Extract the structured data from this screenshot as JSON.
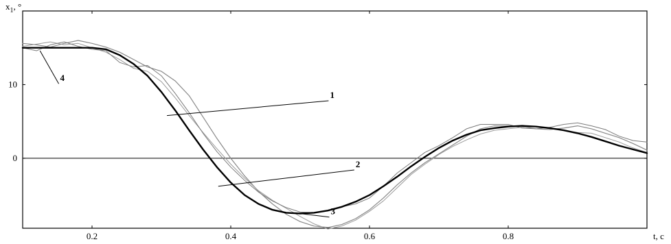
{
  "chart_data": {
    "type": "line",
    "title": "",
    "xlabel": "t, c",
    "ylabel": "x",
    "ylabel_sub": "1",
    "ylabel_suffix": ", °",
    "xlim": [
      0.1,
      1.0
    ],
    "ylim": [
      -9.5,
      20
    ],
    "x_ticks": [
      {
        "value": 0.2,
        "label": "0.2"
      },
      {
        "value": 0.4,
        "label": "0.4"
      },
      {
        "value": 0.6,
        "label": "0.6"
      },
      {
        "value": 0.8,
        "label": "0.8"
      }
    ],
    "y_ticks": [
      {
        "value": 0,
        "label": "0"
      },
      {
        "value": 10,
        "label": "10"
      }
    ],
    "zero_line": true,
    "grid": false,
    "series": [
      {
        "name": "1",
        "color": "#888888",
        "width": 1.2,
        "x": [
          0.1,
          0.12,
          0.14,
          0.16,
          0.18,
          0.2,
          0.22,
          0.24,
          0.26,
          0.28,
          0.3,
          0.32,
          0.34,
          0.36,
          0.38,
          0.4,
          0.42,
          0.44,
          0.46,
          0.48,
          0.5,
          0.52,
          0.54,
          0.56,
          0.58,
          0.6,
          0.62,
          0.64,
          0.66,
          0.68,
          0.7,
          0.72,
          0.74,
          0.76,
          0.78,
          0.8,
          0.82,
          0.84,
          0.86,
          0.88,
          0.9,
          0.92,
          0.94,
          0.96,
          0.98,
          1.0
        ],
        "y": [
          15.6,
          15.4,
          15.1,
          15.6,
          16.0,
          15.6,
          15.1,
          14.4,
          13.4,
          12.4,
          11.8,
          10.5,
          8.5,
          5.6,
          2.7,
          0.0,
          -2.4,
          -4.5,
          -6.2,
          -7.6,
          -8.6,
          -9.2,
          -9.4,
          -9.0,
          -8.2,
          -7.0,
          -5.4,
          -3.6,
          -2.0,
          -0.6,
          0.6,
          1.8,
          3.0,
          4.0,
          4.4,
          4.4,
          4.3,
          4.0,
          3.9,
          4.1,
          4.4,
          4.0,
          3.4,
          2.8,
          2.0,
          1.1
        ]
      },
      {
        "name": "2",
        "color": "#9a9a9a",
        "width": 1.0,
        "x": [
          0.1,
          0.12,
          0.14,
          0.16,
          0.18,
          0.2,
          0.22,
          0.24,
          0.26,
          0.28,
          0.3,
          0.32,
          0.34,
          0.36,
          0.38,
          0.4,
          0.42,
          0.44,
          0.46,
          0.48,
          0.5,
          0.52,
          0.54,
          0.56,
          0.58,
          0.6,
          0.62,
          0.64,
          0.66,
          0.68,
          0.7,
          0.72,
          0.74,
          0.76,
          0.78,
          0.8,
          0.82,
          0.84,
          0.86,
          0.88,
          0.9,
          0.92,
          0.94,
          0.96,
          0.98,
          1.0
        ],
        "y": [
          15.2,
          15.5,
          15.8,
          15.4,
          15.6,
          15.0,
          14.4,
          13.4,
          12.2,
          11.8,
          10.4,
          8.2,
          5.8,
          3.5,
          1.3,
          -0.8,
          -2.7,
          -4.4,
          -5.7,
          -6.8,
          -7.9,
          -8.9,
          -9.6,
          -9.2,
          -8.4,
          -7.2,
          -5.8,
          -4.0,
          -2.2,
          -0.8,
          0.5,
          1.6,
          2.5,
          3.3,
          3.8,
          4.0,
          4.2,
          4.3,
          4.0,
          3.8,
          3.5,
          3.4,
          2.8,
          2.2,
          1.4,
          0.8
        ]
      },
      {
        "name": "4",
        "color": "#7a7a7a",
        "width": 1.0,
        "x": [
          0.1,
          0.12,
          0.14,
          0.16,
          0.18,
          0.2,
          0.22,
          0.24,
          0.26,
          0.28,
          0.3,
          0.32,
          0.34,
          0.36,
          0.38,
          0.4,
          0.42,
          0.44,
          0.46,
          0.48,
          0.5,
          0.52,
          0.54,
          0.56,
          0.58,
          0.6,
          0.62,
          0.64,
          0.66,
          0.68,
          0.7,
          0.72,
          0.74,
          0.76,
          0.78,
          0.8,
          0.82,
          0.84,
          0.86,
          0.88,
          0.9,
          0.92,
          0.94,
          0.96,
          0.98,
          1.0
        ],
        "y": [
          15.0,
          14.6,
          15.4,
          15.8,
          15.2,
          14.8,
          14.6,
          13.0,
          12.4,
          12.6,
          11.2,
          8.8,
          6.2,
          3.4,
          0.9,
          -1.2,
          -3.0,
          -4.6,
          -5.8,
          -6.7,
          -7.3,
          -7.4,
          -7.1,
          -6.6,
          -6.2,
          -5.4,
          -3.8,
          -2.0,
          -0.6,
          0.8,
          1.7,
          2.8,
          4.0,
          4.6,
          4.6,
          4.6,
          4.1,
          4.0,
          4.2,
          4.6,
          4.8,
          4.4,
          3.9,
          3.0,
          2.4,
          2.2
        ]
      },
      {
        "name": "3",
        "color": "#000000",
        "width": 2.4,
        "x": [
          0.1,
          0.12,
          0.14,
          0.16,
          0.18,
          0.2,
          0.22,
          0.24,
          0.26,
          0.28,
          0.3,
          0.32,
          0.34,
          0.36,
          0.38,
          0.4,
          0.42,
          0.44,
          0.46,
          0.48,
          0.5,
          0.52,
          0.54,
          0.56,
          0.58,
          0.6,
          0.62,
          0.64,
          0.66,
          0.68,
          0.7,
          0.72,
          0.74,
          0.76,
          0.78,
          0.8,
          0.82,
          0.84,
          0.86,
          0.88,
          0.9,
          0.92,
          0.94,
          0.96,
          0.98,
          1.0
        ],
        "y": [
          15.0,
          15.0,
          15.0,
          15.0,
          15.0,
          15.0,
          14.8,
          14.0,
          12.8,
          11.2,
          9.0,
          6.5,
          3.8,
          1.2,
          -1.2,
          -3.3,
          -5.0,
          -6.2,
          -7.0,
          -7.4,
          -7.5,
          -7.4,
          -7.1,
          -6.6,
          -5.9,
          -5.0,
          -3.8,
          -2.5,
          -1.1,
          0.2,
          1.4,
          2.4,
          3.2,
          3.8,
          4.1,
          4.3,
          4.4,
          4.3,
          4.1,
          3.8,
          3.4,
          2.9,
          2.3,
          1.7,
          1.2,
          0.7
        ]
      }
    ],
    "annotations": [
      {
        "label": "1",
        "text_x": 0.545,
        "text_y": 8.0,
        "line_to_x": 0.308,
        "line_to_y": 5.8
      },
      {
        "label": "2",
        "text_x": 0.582,
        "text_y": -1.4,
        "line_to_x": 0.382,
        "line_to_y": -3.8
      },
      {
        "label": "3",
        "text_x": 0.546,
        "text_y": -7.8,
        "line_to_x": 0.49,
        "line_to_y": -7.4
      },
      {
        "label": "4",
        "text_x": 0.156,
        "text_y": 10.3,
        "line_to_x": 0.125,
        "line_to_y": 14.6
      }
    ]
  }
}
